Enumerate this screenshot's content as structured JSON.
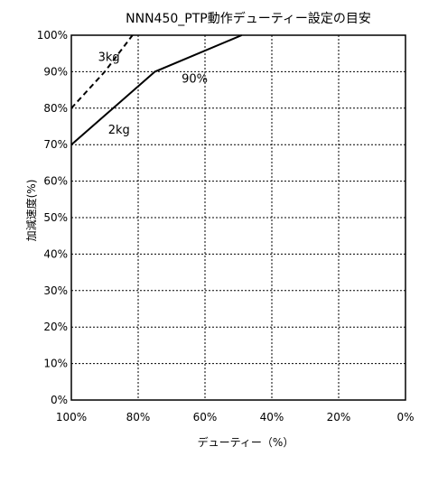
{
  "chart_data": {
    "type": "line",
    "title": "NNN450_PTP動作デューティー設定の目安",
    "xlabel": "デューティー（%）",
    "ylabel": "加減速度(%)",
    "xlim": [
      100,
      0
    ],
    "ylim": [
      0,
      100
    ],
    "x_reversed": true,
    "grid": true,
    "x_ticks": [
      100,
      80,
      60,
      40,
      20,
      0
    ],
    "y_ticks": [
      0,
      10,
      20,
      30,
      40,
      50,
      60,
      70,
      80,
      90,
      100
    ],
    "x_tick_labels": [
      "100%",
      "80%",
      "60%",
      "40%",
      "20%",
      "0%"
    ],
    "y_tick_labels": [
      "0%",
      "10%",
      "20%",
      "30%",
      "40%",
      "50%",
      "60%",
      "70%",
      "80%",
      "90%",
      "100%"
    ],
    "series": [
      {
        "name": "3kg",
        "style": "dashed",
        "color": "#000000",
        "points": [
          [
            100,
            80
          ],
          [
            90,
            90
          ],
          [
            81.7,
            100
          ]
        ]
      },
      {
        "name": "2kg",
        "style": "solid",
        "color": "#000000",
        "points": [
          [
            100,
            70
          ],
          [
            75,
            90
          ],
          [
            49,
            100
          ]
        ]
      }
    ],
    "annotations": [
      {
        "text": "3kg",
        "x": 92,
        "y": 93
      },
      {
        "text": "2kg",
        "x": 89,
        "y": 73
      },
      {
        "text": "90%",
        "x": 67,
        "y": 87
      }
    ]
  }
}
